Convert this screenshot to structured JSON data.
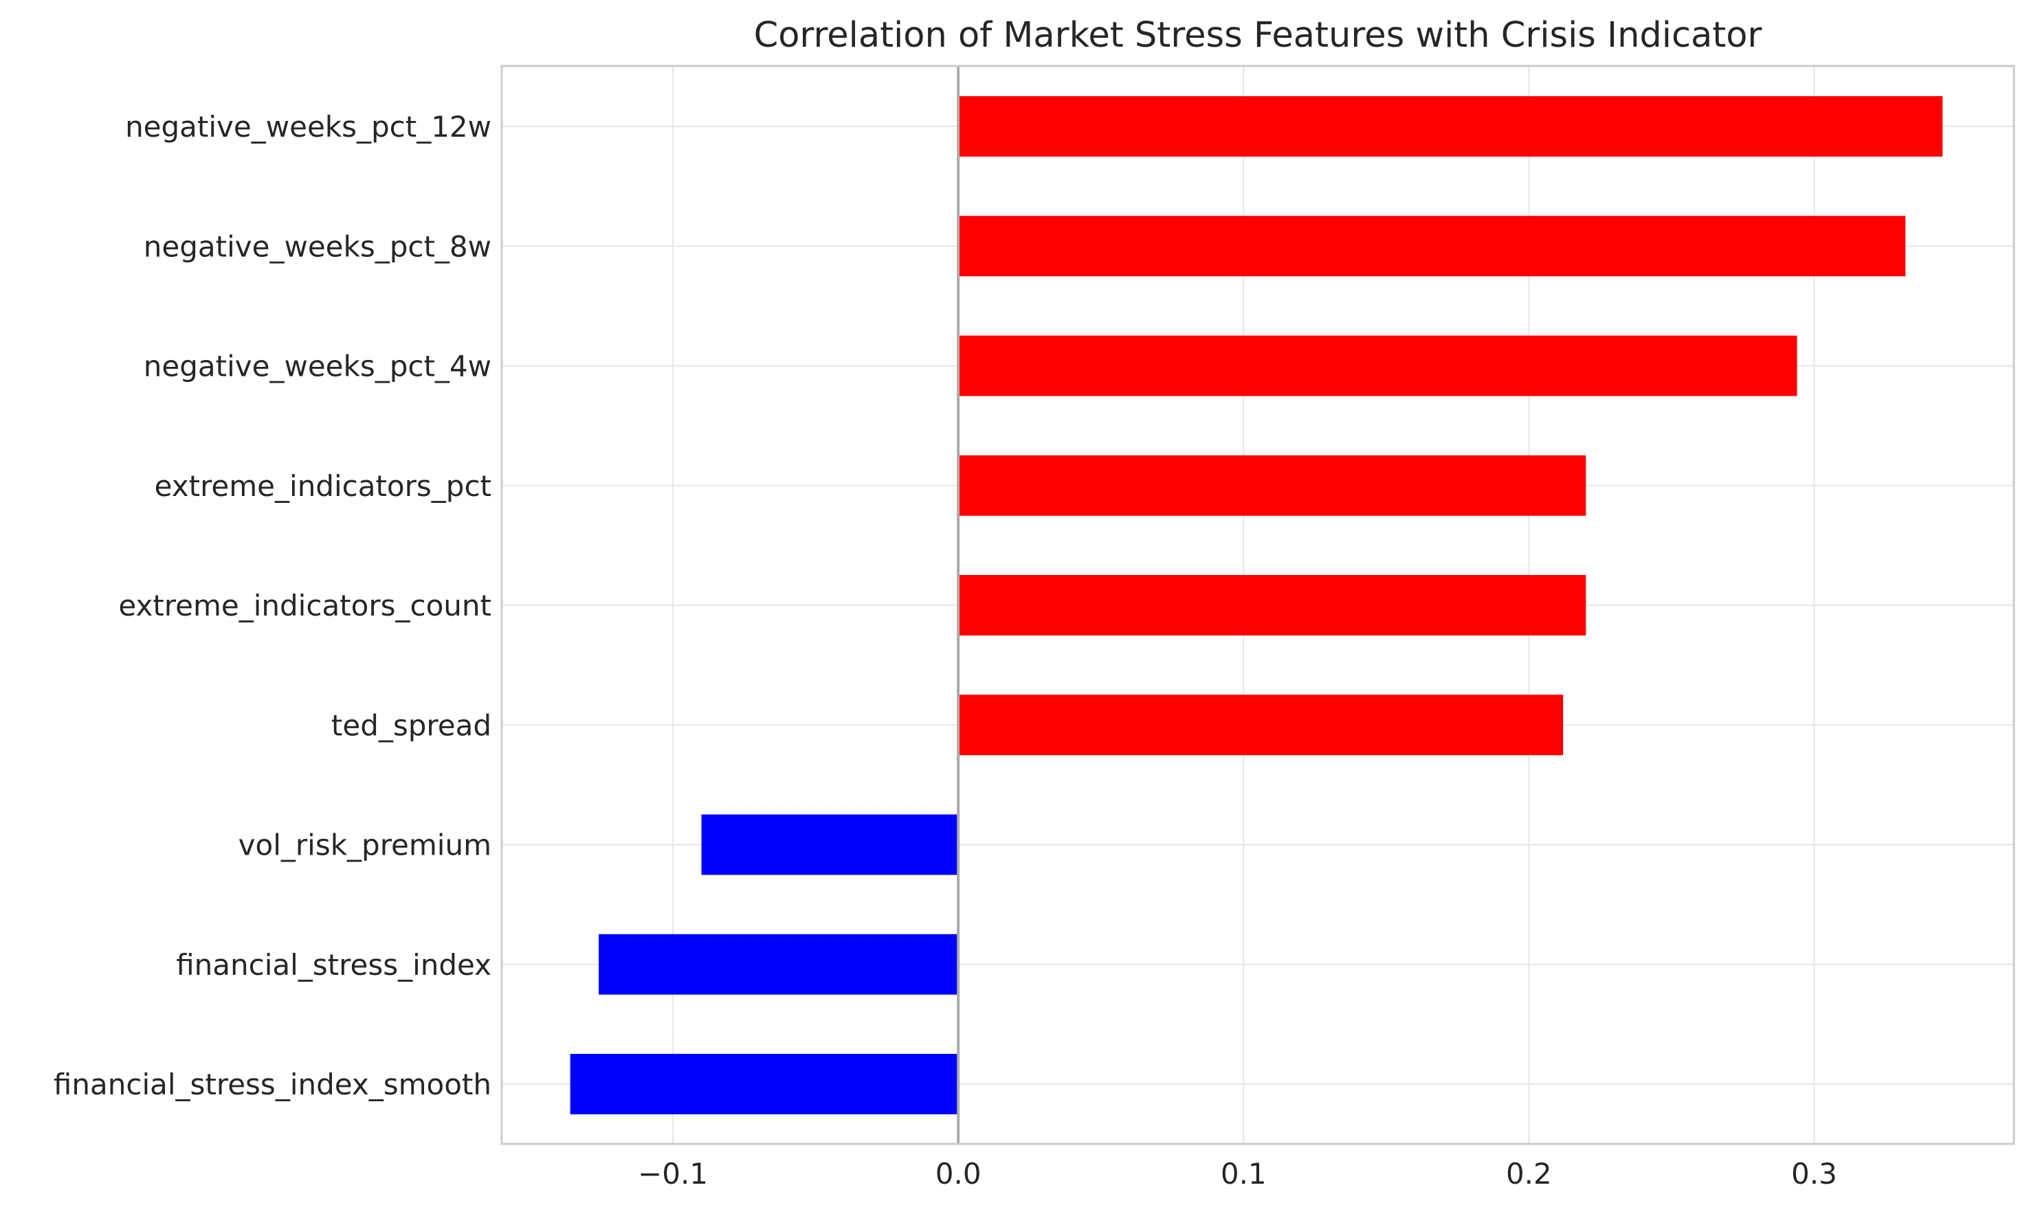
{
  "chart_data": {
    "type": "bar",
    "orientation": "horizontal",
    "title": "Correlation of Market Stress Features with Crisis Indicator",
    "xlabel": "",
    "ylabel": "",
    "xlim": [
      -0.16,
      0.37
    ],
    "xticks": [
      -0.1,
      0.0,
      0.1,
      0.2,
      0.3
    ],
    "xtick_labels": [
      "−0.1",
      "0.0",
      "0.1",
      "0.2",
      "0.3"
    ],
    "grid": true,
    "zero_line": true,
    "categories": [
      "negative_weeks_pct_12w",
      "negative_weeks_pct_8w",
      "negative_weeks_pct_4w",
      "extreme_indicators_pct",
      "extreme_indicators_count",
      "ted_spread",
      "vol_risk_premium",
      "financial_stress_index",
      "financial_stress_index_smooth"
    ],
    "values": [
      0.345,
      0.332,
      0.294,
      0.22,
      0.22,
      0.212,
      -0.09,
      -0.126,
      -0.136
    ],
    "colors": {
      "positive": "#ff0000",
      "negative": "#0000ff",
      "frame": "#cccccc",
      "grid": "#e6e6e6",
      "zero_line": "#aaaaaa",
      "text": "#262626"
    }
  }
}
